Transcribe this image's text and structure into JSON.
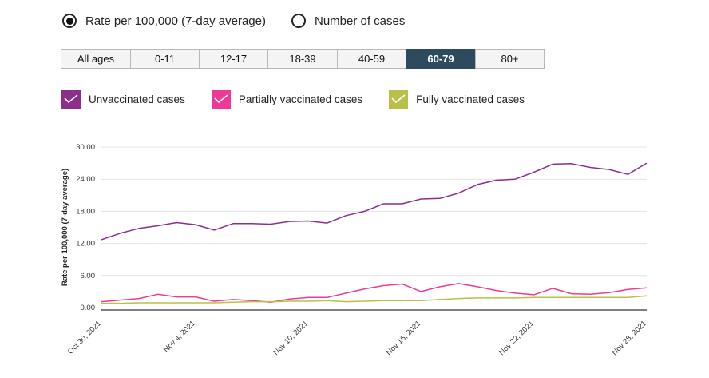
{
  "controls": {
    "measure_options": [
      {
        "label": "Rate per 100,000 (7-day average)",
        "selected": true
      },
      {
        "label": "Number of cases",
        "selected": false
      }
    ],
    "age_groups": [
      "All ages",
      "0-11",
      "12-17",
      "18-39",
      "40-59",
      "60-79",
      "80+"
    ],
    "selected_age_group": "60-79"
  },
  "colors": {
    "unvaccinated": "#8b2f8b",
    "partially": "#ee3a96",
    "fully": "#b9c04a",
    "active_tab": "#2d4a5e"
  },
  "chart_data": {
    "type": "line",
    "ylabel": "Rate per 100,000 (7-day average)",
    "xlabel": "",
    "ylim": [
      0,
      30
    ],
    "yticks": [
      "0.00",
      "6.00",
      "12.00",
      "18.00",
      "24.00",
      "30.00"
    ],
    "xtick_labels": [
      "Oct 30, 2021",
      "Nov 4, 2021",
      "Nov 10, 2021",
      "Nov 16, 2021",
      "Nov 22, 2021",
      "Nov 28, 2021"
    ],
    "x": [
      "Oct 30, 2021",
      "Oct 31, 2021",
      "Nov 1, 2021",
      "Nov 2, 2021",
      "Nov 3, 2021",
      "Nov 4, 2021",
      "Nov 5, 2021",
      "Nov 6, 2021",
      "Nov 7, 2021",
      "Nov 8, 2021",
      "Nov 9, 2021",
      "Nov 10, 2021",
      "Nov 11, 2021",
      "Nov 12, 2021",
      "Nov 13, 2021",
      "Nov 14, 2021",
      "Nov 15, 2021",
      "Nov 16, 2021",
      "Nov 17, 2021",
      "Nov 18, 2021",
      "Nov 19, 2021",
      "Nov 20, 2021",
      "Nov 21, 2021",
      "Nov 22, 2021",
      "Nov 23, 2021",
      "Nov 24, 2021",
      "Nov 25, 2021",
      "Nov 26, 2021",
      "Nov 27, 2021",
      "Nov 28, 2021"
    ],
    "grid": true,
    "series": [
      {
        "name": "Unvaccinated cases",
        "color_key": "unvaccinated",
        "values": [
          12.7,
          13.9,
          14.8,
          15.3,
          15.9,
          15.5,
          14.5,
          15.7,
          15.7,
          15.6,
          16.1,
          16.2,
          15.8,
          17.2,
          18.0,
          19.4,
          19.4,
          20.3,
          20.4,
          21.4,
          23.0,
          23.8,
          24.0,
          25.3,
          26.8,
          26.9,
          26.2,
          25.8,
          24.9,
          27.0
        ]
      },
      {
        "name": "Partially vaccinated cases",
        "color_key": "partially",
        "values": [
          1.1,
          1.4,
          1.7,
          2.5,
          2.0,
          2.0,
          1.2,
          1.5,
          1.3,
          1.0,
          1.6,
          1.9,
          1.9,
          2.7,
          3.5,
          4.1,
          4.4,
          3.0,
          3.9,
          4.5,
          3.9,
          3.2,
          2.7,
          2.4,
          3.6,
          2.6,
          2.5,
          2.8,
          3.4,
          3.7
        ]
      },
      {
        "name": "Fully vaccinated cases",
        "color_key": "fully",
        "values": [
          0.8,
          0.8,
          0.9,
          0.9,
          0.9,
          0.9,
          0.9,
          1.0,
          1.1,
          1.1,
          1.2,
          1.2,
          1.3,
          1.1,
          1.2,
          1.3,
          1.3,
          1.3,
          1.5,
          1.7,
          1.8,
          1.8,
          1.8,
          1.9,
          1.9,
          1.9,
          1.9,
          1.9,
          1.9,
          2.2
        ]
      }
    ]
  }
}
